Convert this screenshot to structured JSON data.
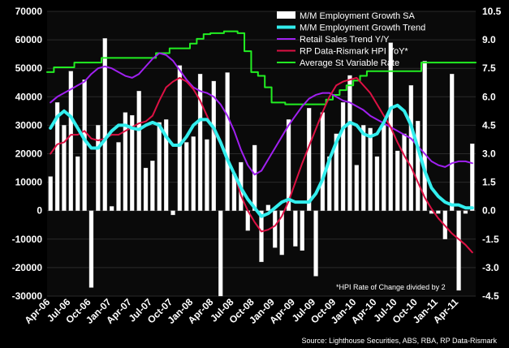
{
  "chart_data": {
    "type": "bar+line",
    "title": "",
    "left_axis": {
      "min": -30000,
      "max": 70000,
      "step": 10000,
      "ticks": [
        "-30000",
        "-20000",
        "-10000",
        "0",
        "10000",
        "20000",
        "30000",
        "40000",
        "50000",
        "60000",
        "70000"
      ]
    },
    "right_axis": {
      "min": -4.5,
      "max": 10.5,
      "step": 1.5,
      "ticks": [
        "-4.5",
        "-3.0",
        "-1.5",
        "0.0",
        "1.5",
        "3.0",
        "4.5",
        "6.0",
        "7.5",
        "9.0",
        "10.5"
      ]
    },
    "x_labels": [
      "Apr-06",
      "Jul-06",
      "Oct-06",
      "Jan-07",
      "Apr-07",
      "Jul-07",
      "Oct-07",
      "Jan-08",
      "Apr-08",
      "Jul-08",
      "Oct-08",
      "Jan-09",
      "Apr-09",
      "Jul-09",
      "Oct-09",
      "Jan-10",
      "Apr-10",
      "Jul-10",
      "Oct-10",
      "Jan-11",
      "Apr-11"
    ],
    "months": 63,
    "series": [
      {
        "name": "M/M Employment Growth SA",
        "kind": "bar",
        "axis": "left",
        "color": "#ffffff",
        "values": [
          12000,
          38000,
          30000,
          49000,
          19000,
          46000,
          -27000,
          30000,
          60500,
          1500,
          24000,
          34500,
          33500,
          42000,
          15000,
          17500,
          31000,
          32000,
          -1500,
          51000,
          24000,
          26000,
          48000,
          25000,
          45500,
          -30000,
          48500,
          13000,
          17000,
          -7000,
          23000,
          -18000,
          2000,
          -13000,
          -15500,
          32000,
          -12500,
          -14000,
          36000,
          -23000,
          34500,
          19000,
          27000,
          38000,
          47500,
          16000,
          30000,
          29000,
          19000,
          30000,
          59000,
          21000,
          27000,
          44000,
          31500,
          52500,
          -1000,
          -1000,
          -10000,
          48000,
          -28000,
          -1000,
          23500
        ]
      },
      {
        "name": "M/M Employment Growth Trend",
        "kind": "line",
        "axis": "left",
        "color": "#33eeee",
        "values": [
          29000,
          33000,
          35000,
          33000,
          29000,
          25000,
          22000,
          22000,
          25000,
          28000,
          30000,
          30000,
          29000,
          28500,
          30000,
          31000,
          30000,
          26000,
          23000,
          23000,
          26000,
          30000,
          32000,
          32000,
          29000,
          24000,
          18000,
          13000,
          8000,
          4000,
          1000,
          -2000,
          -1000,
          1000,
          3000,
          4000,
          3000,
          3000,
          3000,
          6000,
          11000,
          18000,
          24000,
          29000,
          31000,
          30000,
          27000,
          26000,
          27000,
          31000,
          36000,
          37000,
          35000,
          30000,
          22000,
          14000,
          8000,
          5000,
          3000,
          2000,
          2000,
          1000,
          1000
        ]
      },
      {
        "name": "Retail Sales Trend Y/Y",
        "kind": "line",
        "axis": "right",
        "color": "#a020f0",
        "values": [
          5.7,
          6.0,
          6.2,
          6.4,
          6.6,
          6.8,
          7.2,
          7.5,
          7.6,
          7.5,
          7.3,
          7.1,
          7.0,
          7.2,
          7.6,
          8.0,
          8.3,
          8.2,
          7.9,
          7.4,
          6.9,
          6.5,
          6.3,
          6.2,
          6.0,
          5.6,
          5.0,
          4.2,
          3.2,
          2.4,
          1.9,
          2.1,
          2.7,
          3.3,
          3.9,
          4.5,
          5.0,
          5.5,
          5.9,
          6.1,
          6.2,
          6.2,
          6.0,
          5.8,
          5.7,
          5.5,
          5.3,
          5.0,
          4.8,
          4.6,
          4.4,
          4.2,
          4.0,
          3.8,
          3.4,
          3.0,
          2.6,
          2.4,
          2.3,
          2.5,
          2.6,
          2.6,
          2.5
        ]
      },
      {
        "name": "RP Data-Rismark  HPI YoY*",
        "kind": "line",
        "axis": "right",
        "color": "#dd1144",
        "values": [
          3.0,
          3.5,
          3.6,
          4.0,
          4.0,
          4.2,
          3.8,
          3.7,
          3.8,
          4.0,
          4.0,
          4.2,
          4.4,
          4.6,
          4.7,
          5.0,
          5.8,
          6.5,
          6.8,
          7.0,
          6.8,
          6.4,
          5.8,
          5.0,
          4.2,
          3.5,
          2.8,
          2.0,
          0.8,
          0.0,
          -0.6,
          -1.1,
          -1.0,
          -0.8,
          -0.3,
          0.5,
          1.5,
          2.5,
          3.4,
          4.3,
          5.2,
          6.0,
          6.6,
          6.8,
          6.9,
          7.0,
          6.6,
          6.2,
          5.6,
          5.0,
          4.4,
          3.6,
          2.9,
          2.3,
          1.5,
          0.7,
          0.1,
          -0.4,
          -0.8,
          -1.2,
          -1.5,
          -1.8,
          -2.2
        ]
      },
      {
        "name": "Average St Variable Rate",
        "kind": "line",
        "axis": "right",
        "color": "#22ee22",
        "values": [
          7.3,
          7.55,
          7.55,
          7.55,
          7.8,
          7.8,
          7.8,
          7.8,
          8.05,
          8.05,
          8.05,
          8.05,
          8.05,
          8.05,
          8.05,
          8.05,
          8.3,
          8.3,
          8.55,
          8.55,
          8.55,
          8.8,
          9.05,
          9.3,
          9.35,
          9.35,
          9.45,
          9.45,
          9.35,
          8.4,
          7.3,
          7.1,
          6.5,
          5.7,
          5.7,
          5.6,
          5.6,
          5.6,
          5.6,
          5.6,
          5.6,
          5.85,
          6.1,
          6.35,
          6.6,
          6.85,
          7.1,
          7.35,
          7.35,
          7.35,
          7.35,
          7.35,
          7.35,
          7.35,
          7.35,
          7.8,
          7.8,
          7.8,
          7.8,
          7.8,
          7.8,
          7.8,
          7.8
        ]
      }
    ],
    "annotation": "*HPI Rate of Change divided by 2",
    "source": "Source: Lighthouse Securities, ABS, RBA, RP Data-Rismark"
  },
  "colors": {
    "background": "#0a0a0a",
    "grid": "#2a2a2a",
    "text": "#ffffff"
  }
}
